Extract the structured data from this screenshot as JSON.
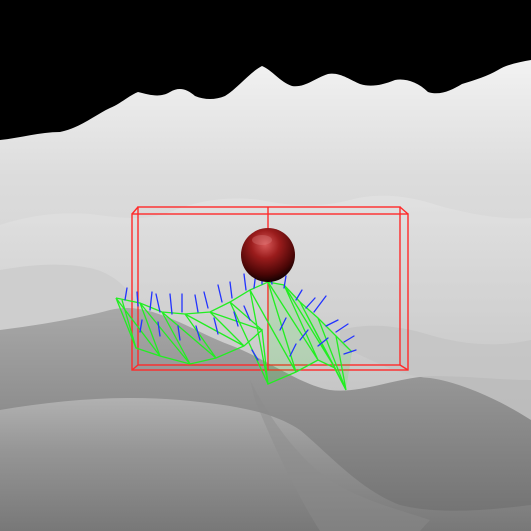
{
  "viewport": {
    "background": "#000000",
    "terrain_color": "#d9d9d9",
    "terrain_shadow": "#8a8a8a",
    "bounding_box_color": "#ff2a2a",
    "sphere_color": "#8a1010",
    "wireframe_color": "#22ee22",
    "normal_color": "#2233ff"
  },
  "scene": {
    "objects": [
      "terrain-mesh",
      "bounding-box",
      "sphere",
      "collision-patch-wireframe",
      "surface-normals"
    ]
  }
}
